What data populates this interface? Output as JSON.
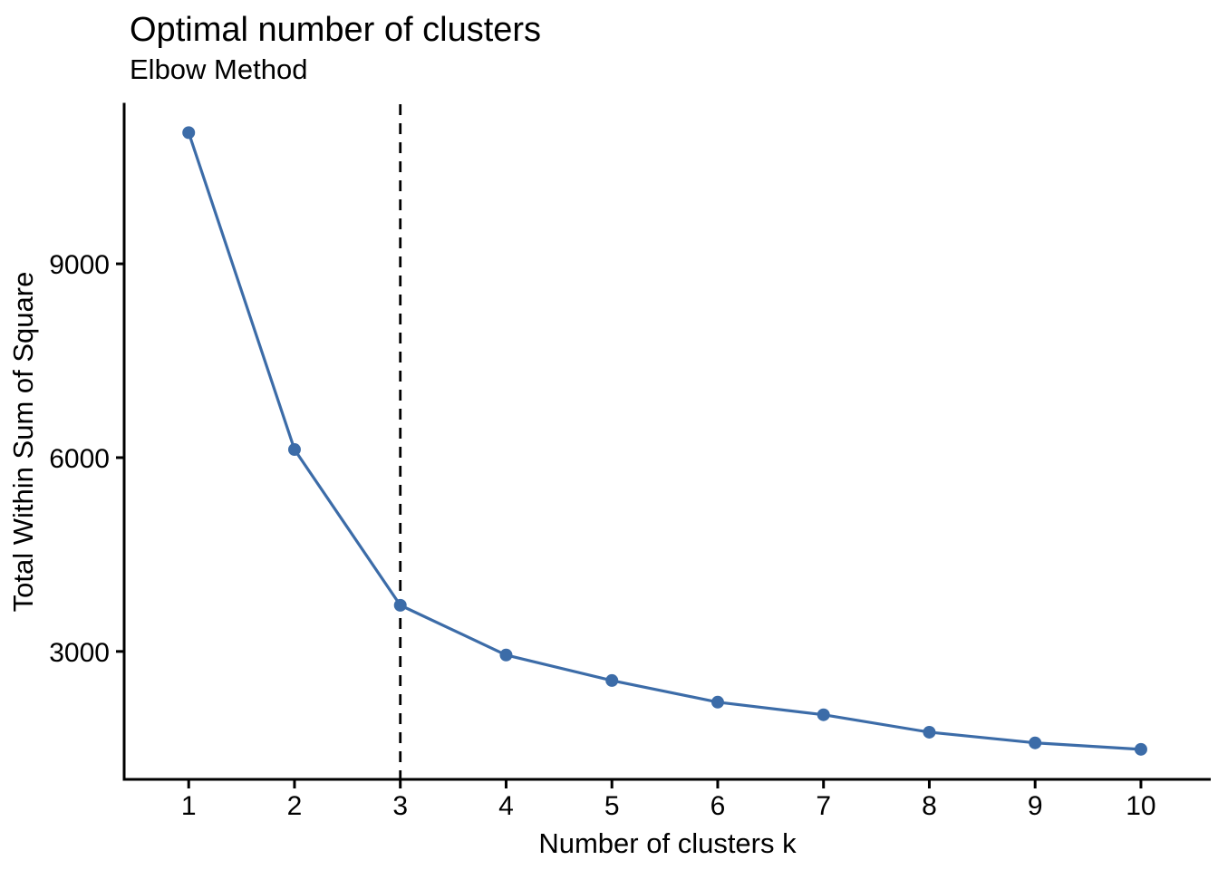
{
  "chart_data": {
    "type": "line",
    "title": "Optimal number of clusters",
    "subtitle": "Elbow Method",
    "xlabel": "Number of clusters k",
    "ylabel": "Total Within Sum of Square",
    "x": [
      1,
      2,
      3,
      4,
      5,
      6,
      7,
      8,
      9,
      10
    ],
    "series": [
      {
        "name": "Total within sum of squares",
        "values": [
          11030,
          6125,
          3715,
          2945,
          2550,
          2215,
          2020,
          1750,
          1585,
          1485
        ]
      }
    ],
    "xticks": [
      1,
      2,
      3,
      4,
      5,
      6,
      7,
      8,
      9,
      10
    ],
    "yticks": [
      3000,
      6000,
      9000
    ],
    "xlim": [
      0.39,
      10.66
    ],
    "ylim": [
      1020,
      11470
    ],
    "grid": false,
    "legend": "none",
    "annotations": [
      {
        "type": "vline",
        "x": 3,
        "linetype": "dashed",
        "color": "#000000",
        "meaning": "optimal k"
      }
    ]
  },
  "colors": {
    "line": "#3C6CA8",
    "point": "#3C6CA8",
    "axis": "#000000",
    "dashed_line": "#000000",
    "background": "#ffffff",
    "text": "#000000"
  }
}
